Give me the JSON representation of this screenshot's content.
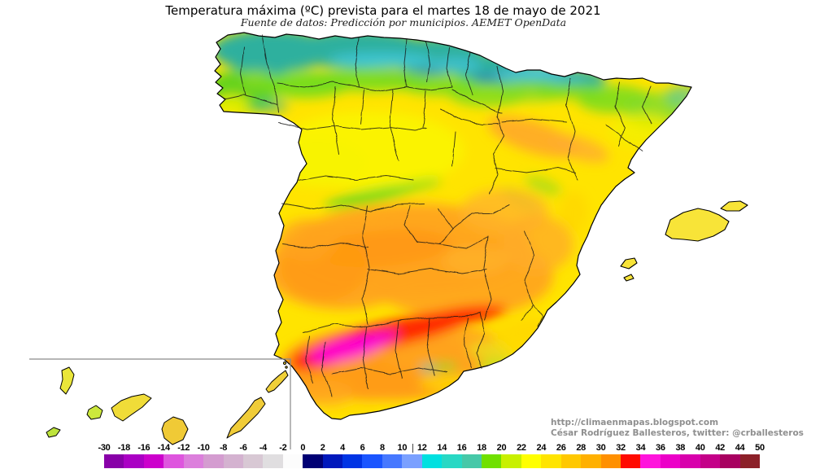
{
  "title": "Temperatura máxima (ºC) prevista para el martes 18 de mayo de 2021",
  "subtitle": "Fuente de datos: Predicción por municipios. AEMET OpenData",
  "credits": {
    "url": "http://climaenmapas.blogspot.com",
    "author": "César Rodríguez Ballesteros, twitter: @crballesteros"
  },
  "scale": {
    "unit": "ºC",
    "labels": [
      "-30",
      "-18",
      "-16",
      "-14",
      "-12",
      "-10",
      "-8",
      "-6",
      "-4",
      "-2",
      "0",
      "2",
      "4",
      "6",
      "8",
      "10",
      "12",
      "14",
      "16",
      "18",
      "20",
      "22",
      "24",
      "26",
      "28",
      "30",
      "32",
      "34",
      "36",
      "38",
      "40",
      "42",
      "44",
      "50"
    ],
    "colors": [
      "#8800A8",
      "#AA00C4",
      "#CC00CC",
      "#DE55DE",
      "#DC7FDC",
      "#D49CD0",
      "#D4B2D0",
      "#D8C8D4",
      "#E0DEE0",
      "#FCFCFC",
      "#000074",
      "#0018BC",
      "#0034E4",
      "#1A55FF",
      "#4678FF",
      "#7AA0FF",
      "#00E0E0",
      "#28D8C4",
      "#46C8A8",
      "#70E000",
      "#C8F000",
      "#FFFF00",
      "#FFE400",
      "#FFC800",
      "#FFB000",
      "#FF9000",
      "#FF0A00",
      "#FF14DC",
      "#EC00C8",
      "#D800AC",
      "#C40088",
      "#A80060",
      "#8C2028"
    ]
  },
  "map": {
    "region": "Spain (peninsula, Balearic and Canary Islands)",
    "hot_spot_color": "#FF00C8",
    "cold_band_color": "#2EB09E"
  }
}
